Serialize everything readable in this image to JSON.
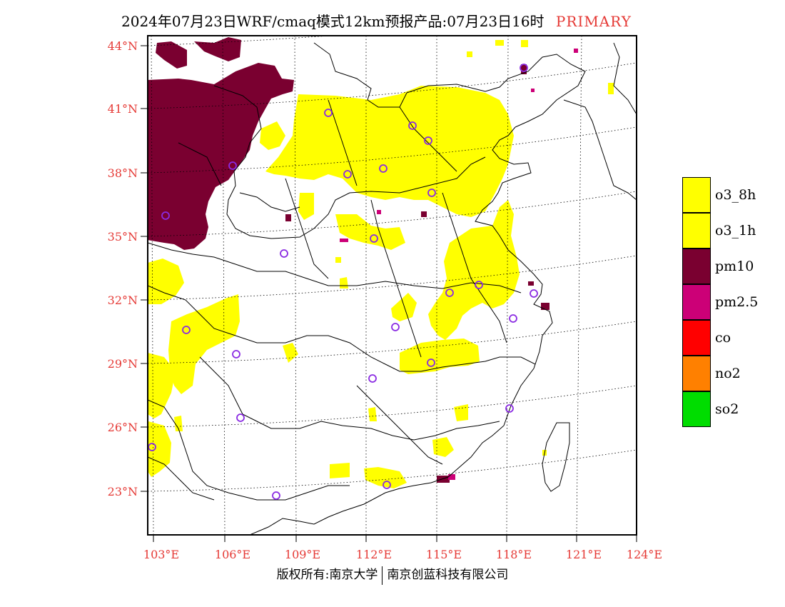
{
  "title": {
    "text": "2024年07月23日WRF/cmaq模式12km预报产品:07月23日16时",
    "status": "PRIMARY"
  },
  "axes": {
    "lat_labels": [
      "44°N",
      "41°N",
      "38°N",
      "35°N",
      "32°N",
      "29°N",
      "26°N",
      "23°N"
    ],
    "lon_labels": [
      "103°E",
      "106°E",
      "109°E",
      "112°E",
      "115°E",
      "118°E",
      "121°E",
      "124°E"
    ]
  },
  "legend": {
    "items": [
      {
        "label": "o3_8h",
        "color": "#ffff00"
      },
      {
        "label": "o3_1h",
        "color": "#ffff00"
      },
      {
        "label": "pm10",
        "color": "#7a0030"
      },
      {
        "label": "pm2.5",
        "color": "#cc0077"
      },
      {
        "label": "co",
        "color": "#ff0000"
      },
      {
        "label": "no2",
        "color": "#ff8000"
      },
      {
        "label": "so2",
        "color": "#00dd00"
      }
    ]
  },
  "footer": {
    "left": "版权所有:南京大学",
    "right": "南京创蓝科技有限公司"
  },
  "colors": {
    "o3": "#ffff00",
    "pm10": "#7a0030",
    "pm25": "#cc0077",
    "station": "#8a2be2",
    "axis_text": "#e53935"
  }
}
